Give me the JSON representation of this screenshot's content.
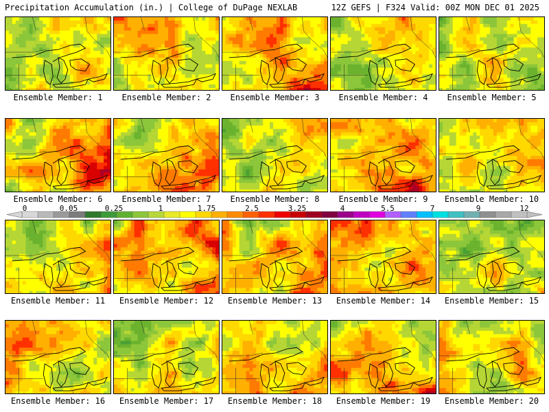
{
  "header": {
    "title": "Precipitation Accumulation (in.) | College of DuPage NEXLAB",
    "run_info": "12Z GEFS | F324 Valid: 00Z MON DEC 01 2025"
  },
  "colorbar": {
    "labels": [
      "0",
      "0.05",
      "0.25",
      "1",
      "1.75",
      "2.5",
      "3.25",
      "4",
      "5.5",
      "7",
      "9",
      "12"
    ],
    "colors": [
      "#d8d8d8",
      "#b9b9b9",
      "#9a9a9a",
      "#7c7c7c",
      "#2f7a2f",
      "#3f9a3a",
      "#5fb030",
      "#8cc63a",
      "#b8d83a",
      "#e8ea2a",
      "#ffff00",
      "#ffd800",
      "#ffb000",
      "#ff8c00",
      "#ff6000",
      "#ff3000",
      "#ee0000",
      "#c80000",
      "#a00020",
      "#800040",
      "#9a008a",
      "#c000c0",
      "#e000e0",
      "#b060ff",
      "#6080ff",
      "#00c0ff",
      "#00e0e0",
      "#40c0c0",
      "#70b0b0",
      "#909090",
      "#a8a8a8",
      "#c0c0c0"
    ]
  },
  "members": [
    {
      "label": "Ensemble Member: 1",
      "bias": [
        0.45,
        0.55,
        0.3,
        0.6
      ]
    },
    {
      "label": "Ensemble Member: 2",
      "bias": [
        0.65,
        0.7,
        0.45,
        0.55
      ]
    },
    {
      "label": "Ensemble Member: 3",
      "bias": [
        0.5,
        0.65,
        0.35,
        0.95
      ]
    },
    {
      "label": "Ensemble Member: 4",
      "bias": [
        0.45,
        0.55,
        0.3,
        0.6
      ]
    },
    {
      "label": "Ensemble Member: 5",
      "bias": [
        0.45,
        0.45,
        0.35,
        0.45
      ]
    },
    {
      "label": "Ensemble Member: 6",
      "bias": [
        0.45,
        0.8,
        0.45,
        0.85
      ]
    },
    {
      "label": "Ensemble Member: 7",
      "bias": [
        0.35,
        0.75,
        0.55,
        0.8
      ]
    },
    {
      "label": "Ensemble Member: 8",
      "bias": [
        0.3,
        0.55,
        0.25,
        0.5
      ]
    },
    {
      "label": "Ensemble Member: 9",
      "bias": [
        0.55,
        0.7,
        0.45,
        0.9
      ]
    },
    {
      "label": "Ensemble Member: 10",
      "bias": [
        0.55,
        0.85,
        0.4,
        0.45
      ]
    },
    {
      "label": "Ensemble Member: 11",
      "bias": [
        0.5,
        0.6,
        0.5,
        0.65
      ]
    },
    {
      "label": "Ensemble Member: 12",
      "bias": [
        0.55,
        0.7,
        0.55,
        0.75
      ]
    },
    {
      "label": "Ensemble Member: 13",
      "bias": [
        0.5,
        0.7,
        0.5,
        0.75
      ]
    },
    {
      "label": "Ensemble Member: 14",
      "bias": [
        0.6,
        0.8,
        0.55,
        0.65
      ]
    },
    {
      "label": "Ensemble Member: 15",
      "bias": [
        0.35,
        0.45,
        0.35,
        0.45
      ]
    },
    {
      "label": "Ensemble Member: 16",
      "bias": [
        0.6,
        0.5,
        0.6,
        0.45
      ]
    },
    {
      "label": "Ensemble Member: 17",
      "bias": [
        0.3,
        0.6,
        0.5,
        0.75
      ]
    },
    {
      "label": "Ensemble Member: 18",
      "bias": [
        0.5,
        0.6,
        0.6,
        0.9
      ]
    },
    {
      "label": "Ensemble Member: 19",
      "bias": [
        0.45,
        0.6,
        0.6,
        0.85
      ]
    },
    {
      "label": "Ensemble Member: 20",
      "bias": [
        0.5,
        0.45,
        0.5,
        0.55
      ]
    }
  ]
}
